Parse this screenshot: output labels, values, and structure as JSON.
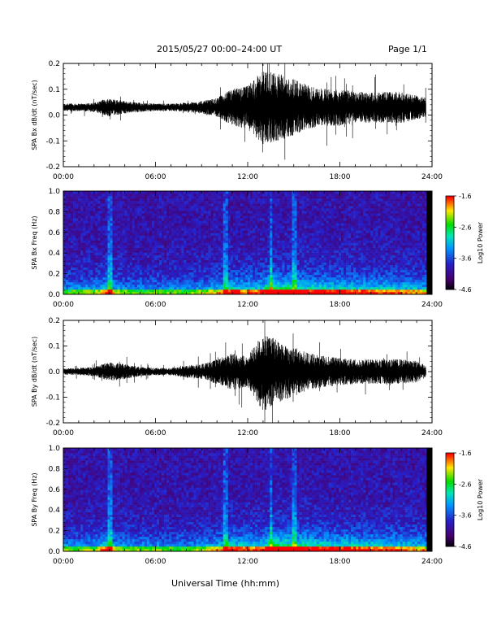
{
  "header": {
    "title": "2015/05/27  00:00–24:00 UT",
    "page": "Page 1/1"
  },
  "xlabel": "Universal Time (hh:mm)",
  "colorbar": {
    "label": "Log10 Power",
    "ticks": [
      "-1.6",
      "-2.6",
      "-3.6",
      "-4.6"
    ],
    "range": [
      -4.6,
      -1.6
    ]
  },
  "chart_data": [
    {
      "type": "line",
      "title": "",
      "ylabel": "SPA Bx dB/dt (nT/sec)",
      "xlabel": "",
      "xlim": [
        "00:00",
        "24:00"
      ],
      "xticks": [
        "00:00",
        "06:00",
        "12:00",
        "18:00",
        "24:00"
      ],
      "ylim": [
        -0.2,
        0.2
      ],
      "yticks": [
        "0.2",
        "0.1",
        "0.0",
        "-0.1",
        "-0.2"
      ],
      "series": [
        {
          "x_hours": [
            0,
            1,
            2,
            3,
            4,
            5,
            6,
            7,
            8,
            9,
            10,
            11,
            12,
            13,
            14,
            15,
            16,
            17,
            18,
            19,
            20,
            21,
            22,
            23,
            23.6
          ],
          "amplitude": [
            0.012,
            0.012,
            0.015,
            0.03,
            0.02,
            0.015,
            0.012,
            0.012,
            0.015,
            0.02,
            0.03,
            0.06,
            0.07,
            0.12,
            0.11,
            0.09,
            0.07,
            0.06,
            0.06,
            0.05,
            0.05,
            0.05,
            0.05,
            0.04,
            0.03
          ],
          "baseline": 0.03
        }
      ]
    },
    {
      "type": "heatmap",
      "title": "",
      "ylabel": "SPA Bx Freq (Hz)",
      "xlim": [
        "00:00",
        "24:00"
      ],
      "xticks": [
        "00:00",
        "06:00",
        "12:00",
        "18:00",
        "24:00"
      ],
      "ylim": [
        0.0,
        1.0
      ],
      "yticks": [
        "1.0",
        "0.8",
        "0.6",
        "0.4",
        "0.2",
        "0.0"
      ],
      "value_units": "Log10 Power",
      "clim": [
        -4.6,
        -1.6
      ]
    },
    {
      "type": "line",
      "title": "",
      "ylabel": "SPA By dB/dt (nT/sec)",
      "xlabel": "",
      "xlim": [
        "00:00",
        "24:00"
      ],
      "xticks": [
        "00:00",
        "06:00",
        "12:00",
        "18:00",
        "24:00"
      ],
      "ylim": [
        -0.2,
        0.2
      ],
      "yticks": [
        "0.2",
        "0.1",
        "0.0",
        "-0.1",
        "-0.2"
      ],
      "series": [
        {
          "x_hours": [
            0,
            1,
            2,
            3,
            4,
            5,
            6,
            7,
            8,
            9,
            10,
            11,
            12,
            13,
            14,
            15,
            16,
            17,
            18,
            19,
            20,
            21,
            22,
            23,
            23.6
          ],
          "amplitude": [
            0.01,
            0.012,
            0.015,
            0.03,
            0.025,
            0.015,
            0.012,
            0.012,
            0.02,
            0.025,
            0.04,
            0.06,
            0.05,
            0.13,
            0.1,
            0.08,
            0.06,
            0.05,
            0.045,
            0.04,
            0.04,
            0.04,
            0.04,
            0.035,
            0.02
          ],
          "baseline": 0.0
        }
      ]
    },
    {
      "type": "heatmap",
      "title": "",
      "ylabel": "SPA By Freq (Hz)",
      "xlim": [
        "00:00",
        "24:00"
      ],
      "xticks": [
        "00:00",
        "06:00",
        "12:00",
        "18:00",
        "24:00"
      ],
      "ylim": [
        0.0,
        1.0
      ],
      "yticks": [
        "1.0",
        "0.8",
        "0.6",
        "0.4",
        "0.2",
        "0.0"
      ],
      "value_units": "Log10 Power",
      "clim": [
        -4.6,
        -1.6
      ]
    }
  ]
}
